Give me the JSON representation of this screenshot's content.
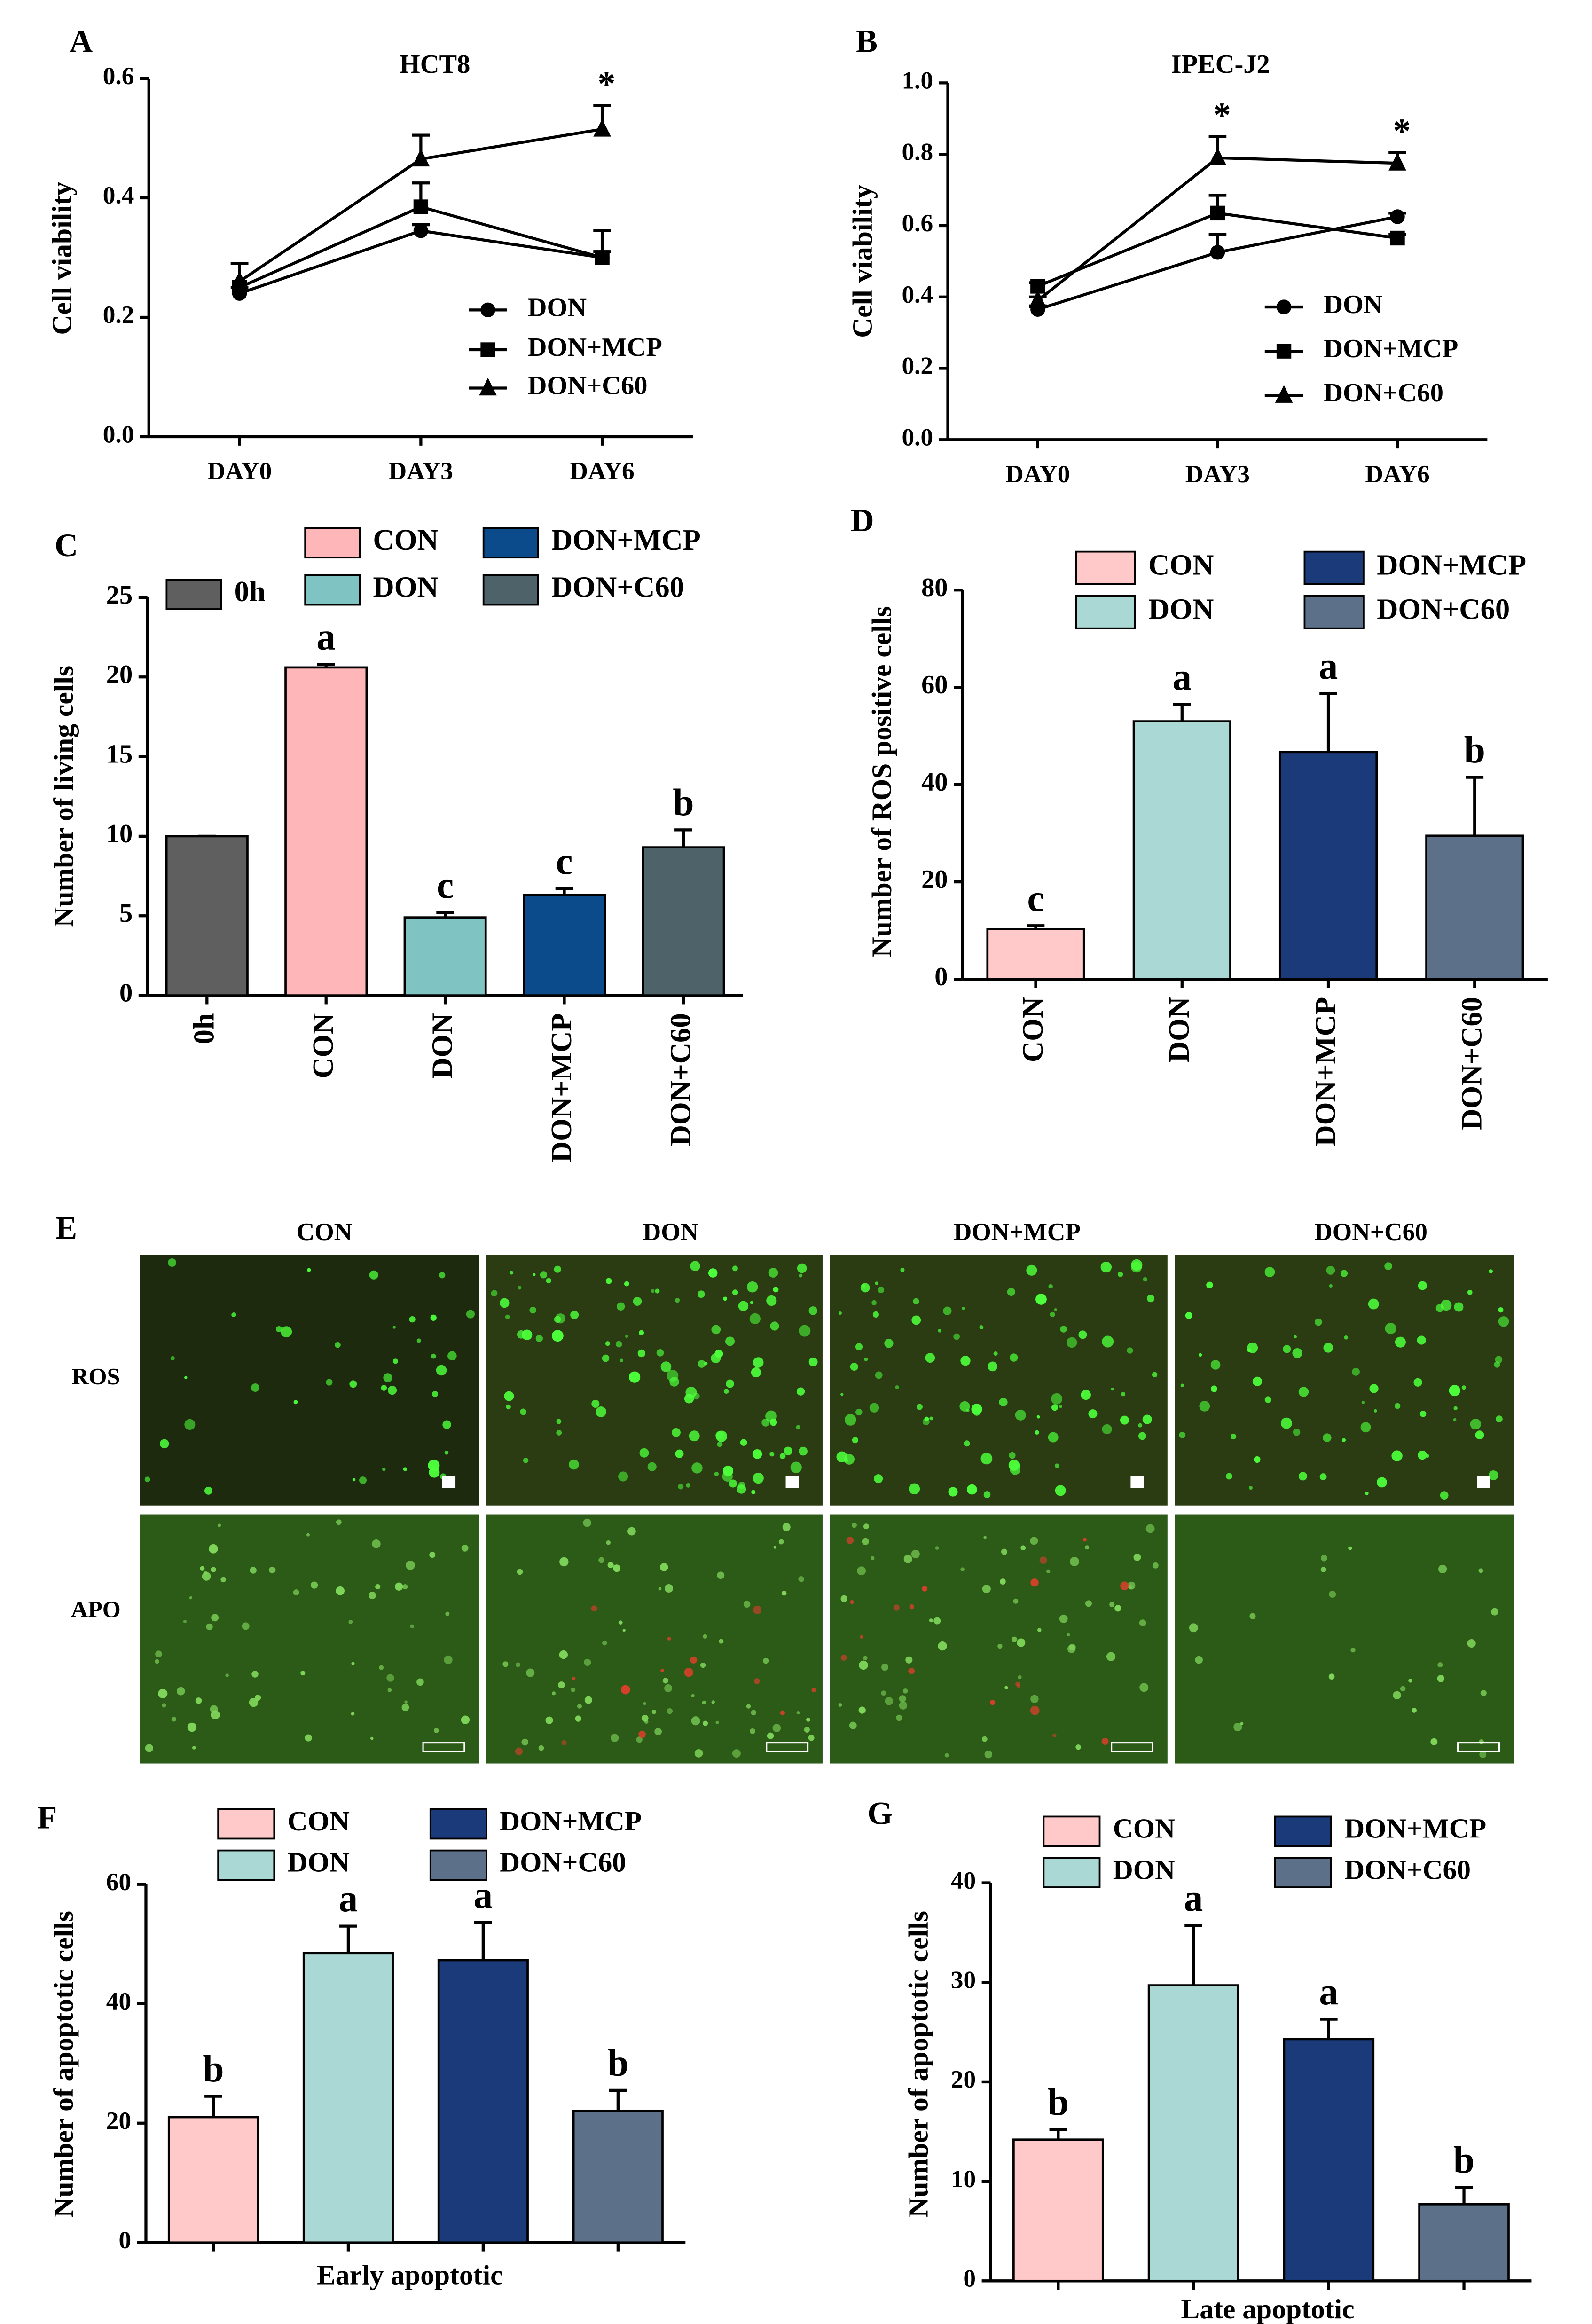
{
  "chart_data": [
    {
      "type": "line",
      "panel": "A",
      "title": "HCT8",
      "ylabel": "Cell viability",
      "categories": [
        "DAY0",
        "DAY3",
        "DAY6"
      ],
      "ylim": [
        0,
        0.6
      ],
      "yticks": [
        {
          "value": 0,
          "label": "0.0"
        },
        0.2,
        0.4,
        0.6
      ],
      "series": [
        {
          "name": "DON",
          "marker": "circle",
          "color": "#000000",
          "values": [
            0.24,
            0.345,
            0.3
          ],
          "errors": [
            0.01,
            0.01,
            0.01
          ],
          "annotations": [
            null,
            null,
            null
          ]
        },
        {
          "name": "DON+MCP",
          "marker": "square",
          "color": "#000000",
          "values": [
            0.25,
            0.385,
            0.3
          ],
          "errors": [
            0.04,
            0.04,
            0.045
          ],
          "annotations": [
            null,
            null,
            null
          ]
        },
        {
          "name": "DON+C60",
          "marker": "triangle",
          "color": "#000000",
          "values": [
            0.26,
            0.465,
            0.515
          ],
          "errors": [
            0.03,
            0.04,
            0.04
          ],
          "annotations": [
            null,
            null,
            "*"
          ]
        }
      ]
    },
    {
      "type": "line",
      "panel": "B",
      "title": "IPEC-J2",
      "ylabel": "Cell viability",
      "categories": [
        "DAY0",
        "DAY3",
        "DAY6"
      ],
      "ylim": [
        0,
        1.0
      ],
      "yticks": [
        {
          "value": 0,
          "label": "0.0"
        },
        0.2,
        0.4,
        0.6,
        0.8,
        {
          "value": 1,
          "label": "1.0"
        }
      ],
      "series": [
        {
          "name": "DON",
          "marker": "circle",
          "color": "#000000",
          "values": [
            0.365,
            0.525,
            0.625
          ],
          "errors": [
            0.01,
            0.05,
            0.01
          ],
          "annotations": [
            null,
            null,
            null
          ]
        },
        {
          "name": "DON+MCP",
          "marker": "square",
          "color": "#000000",
          "values": [
            0.43,
            0.635,
            0.565
          ],
          "errors": [
            0.01,
            0.05,
            0.01
          ],
          "annotations": [
            null,
            null,
            null
          ]
        },
        {
          "name": "DON+C60",
          "marker": "triangle",
          "color": "#000000",
          "values": [
            0.39,
            0.79,
            0.775
          ],
          "errors": [
            0.01,
            0.06,
            0.03
          ],
          "annotations": [
            null,
            "*",
            "*"
          ]
        }
      ]
    },
    {
      "type": "bar",
      "panel": "C",
      "ylabel": "Number of living cells",
      "categories": [
        "0h",
        "CON",
        "DON",
        "DON+MCP",
        "DON+C60"
      ],
      "values": [
        10,
        20.6,
        4.9,
        6.3,
        9.3
      ],
      "errors": [
        0,
        0.2,
        0.3,
        0.4,
        1.1
      ],
      "annotations": [
        null,
        "a",
        "c",
        "c",
        "b"
      ],
      "colors": [
        "#5f5f5f",
        "#ffb6b9",
        "#7fc4c2",
        "#0b4a8b",
        "#4d6369"
      ],
      "ylim": [
        0,
        25
      ],
      "yticks": [
        0,
        5,
        10,
        15,
        20,
        25
      ]
    },
    {
      "type": "bar",
      "panel": "D",
      "ylabel": "Number of ROS positive cells",
      "categories": [
        "CON",
        "DON",
        "DON+MCP",
        "DON+C60"
      ],
      "values": [
        10.3,
        53,
        46.7,
        29.5
      ],
      "errors": [
        0.7,
        3.5,
        12,
        12
      ],
      "annotations": [
        "c",
        "a",
        "a",
        "b"
      ],
      "colors": [
        "#ffc8c9",
        "#a9d8d5",
        "#1a3a7a",
        "#5c7089"
      ],
      "ylim": [
        0,
        80
      ],
      "yticks": [
        0,
        20,
        40,
        60,
        80
      ]
    },
    {
      "type": "bar",
      "panel": "F",
      "ylabel": "Number of apoptotic cells",
      "xlabel": "Early apoptotic",
      "categories": [
        "CON",
        "DON",
        "DON+MCP",
        "DON+C60"
      ],
      "values": [
        21,
        48.5,
        47.3,
        22
      ],
      "errors": [
        3.5,
        4.5,
        6.3,
        3.5
      ],
      "annotations": [
        "b",
        "a",
        "a",
        "b"
      ],
      "colors": [
        "#ffc8c9",
        "#a9d8d5",
        "#1a3a7a",
        "#5c7089"
      ],
      "ylim": [
        0,
        60
      ],
      "yticks": [
        0,
        20,
        40,
        60
      ]
    },
    {
      "type": "bar",
      "panel": "G",
      "ylabel": "Number of apoptotic cells",
      "xlabel": "Late apoptotic",
      "categories": [
        "CON",
        "DON",
        "DON+MCP",
        "DON+C60"
      ],
      "values": [
        14.2,
        29.7,
        24.3,
        7.7
      ],
      "errors": [
        1,
        6,
        2,
        1.7
      ],
      "annotations": [
        "b",
        "a",
        "a",
        "b"
      ],
      "colors": [
        "#ffc8c9",
        "#a9d8d5",
        "#1a3a7a",
        "#5c7089"
      ],
      "ylim": [
        0,
        40
      ],
      "yticks": [
        0,
        10,
        20,
        30,
        40
      ]
    }
  ],
  "figure_e": {
    "panel": "E",
    "columns": [
      "CON",
      "DON",
      "DON+MCP",
      "DON+C60"
    ],
    "rows": [
      "ROS",
      "APO"
    ]
  }
}
